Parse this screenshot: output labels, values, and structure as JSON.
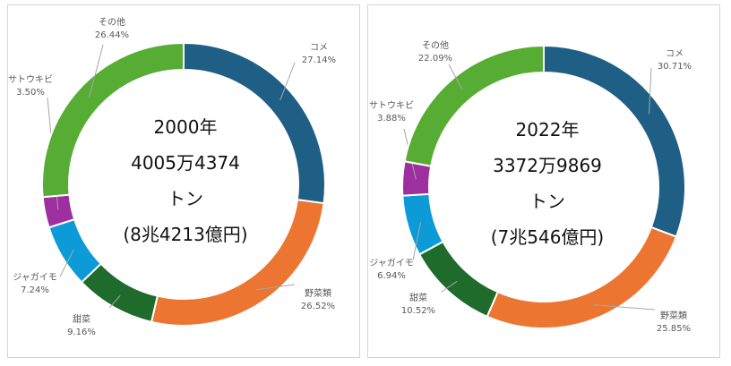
{
  "chart_data": [
    {
      "type": "pie",
      "categories": [
        "コメ",
        "野菜類",
        "甜菜",
        "ジャガイモ",
        "サトウキビ",
        "その他"
      ],
      "values": [
        27.14,
        26.52,
        9.16,
        7.24,
        3.5,
        26.44
      ],
      "value_labels": [
        "27.14%",
        "26.52%",
        "9.16%",
        "7.24%",
        "3.50%",
        "26.44%"
      ],
      "center_text": [
        "2000年",
        "4005万4374",
        "トン",
        "(8兆4213億円)"
      ]
    },
    {
      "type": "pie",
      "categories": [
        "コメ",
        "野菜類",
        "甜菜",
        "ジャガイモ",
        "サトウキビ",
        "その他"
      ],
      "values": [
        30.71,
        25.85,
        10.52,
        6.94,
        3.88,
        22.09
      ],
      "value_labels": [
        "30.71%",
        "25.85%",
        "10.52%",
        "6.94%",
        "3.88%",
        "22.09%"
      ],
      "center_text": [
        "2022年",
        "3372万9869",
        "トン",
        "(7兆546億円)"
      ]
    }
  ],
  "colors": [
    "#1f5f85",
    "#ec7532",
    "#1e6b2c",
    "#0d9bd8",
    "#9e2f9e",
    "#57ac34"
  ]
}
